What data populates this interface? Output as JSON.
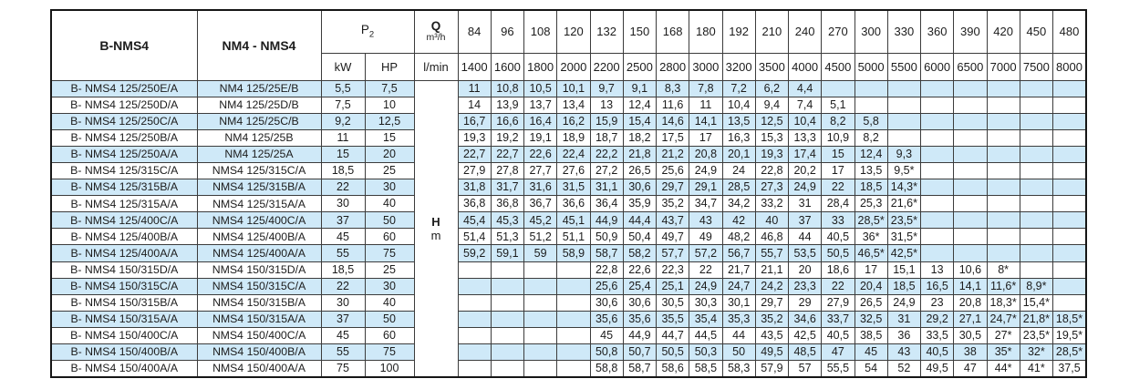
{
  "colors": {
    "stripe": "#cfe9f8",
    "border": "#3c3c3c",
    "outer": "#161616",
    "text": "#1c1c1c"
  },
  "table": {
    "col1_header": "B-NMS4",
    "col2_header": "NM4 - NMS4",
    "p2_main": "P",
    "p2_sub": "2",
    "kw_label": "kW",
    "hp_label": "HP",
    "q_label": "Q",
    "q_unit": "m³/h",
    "lmin_label": "l/min",
    "h_label": "H",
    "h_unit": "m",
    "flow_m3h": [
      "84",
      "96",
      "108",
      "120",
      "132",
      "150",
      "168",
      "180",
      "192",
      "210",
      "240",
      "270",
      "300",
      "330",
      "360",
      "390",
      "420",
      "450",
      "480"
    ],
    "flow_lmin": [
      "1400",
      "1600",
      "1800",
      "2000",
      "2200",
      "2500",
      "2800",
      "3000",
      "3200",
      "3500",
      "4000",
      "4500",
      "5000",
      "5500",
      "6000",
      "6500",
      "7000",
      "7500",
      "8000"
    ],
    "rows": [
      {
        "b": "B- NMS4 125/250E/A",
        "n": "NM4 125/25E/B",
        "kw": "5,5",
        "hp": "7,5",
        "v": [
          "11",
          "10,8",
          "10,5",
          "10,1",
          "9,7",
          "9,1",
          "8,3",
          "7,8",
          "7,2",
          "6,2",
          "4,4",
          "",
          "",
          "",
          "",
          "",
          "",
          "",
          ""
        ]
      },
      {
        "b": "B- NMS4 125/250D/A",
        "n": "NM4 125/25D/B",
        "kw": "7,5",
        "hp": "10",
        "v": [
          "14",
          "13,9",
          "13,7",
          "13,4",
          "13",
          "12,4",
          "11,6",
          "11",
          "10,4",
          "9,4",
          "7,4",
          "5,1",
          "",
          "",
          "",
          "",
          "",
          "",
          ""
        ]
      },
      {
        "b": "B- NMS4 125/250C/A",
        "n": "NM4 125/25C/B",
        "kw": "9,2",
        "hp": "12,5",
        "v": [
          "16,7",
          "16,6",
          "16,4",
          "16,2",
          "15,9",
          "15,4",
          "14,6",
          "14,1",
          "13,5",
          "12,5",
          "10,4",
          "8,2",
          "5,8",
          "",
          "",
          "",
          "",
          "",
          ""
        ]
      },
      {
        "b": "B- NMS4 125/250B/A",
        "n": "NM4 125/25B",
        "kw": "11",
        "hp": "15",
        "v": [
          "19,3",
          "19,2",
          "19,1",
          "18,9",
          "18,7",
          "18,2",
          "17,5",
          "17",
          "16,3",
          "15,3",
          "13,3",
          "10,9",
          "8,2",
          "",
          "",
          "",
          "",
          "",
          ""
        ]
      },
      {
        "b": "B- NMS4 125/250A/A",
        "n": "NM4 125/25A",
        "kw": "15",
        "hp": "20",
        "v": [
          "22,7",
          "22,7",
          "22,6",
          "22,4",
          "22,2",
          "21,8",
          "21,2",
          "20,8",
          "20,1",
          "19,3",
          "17,4",
          "15",
          "12,4",
          "9,3",
          "",
          "",
          "",
          "",
          ""
        ]
      },
      {
        "b": "B- NMS4 125/315C/A",
        "n": "NMS4 125/315C/A",
        "kw": "18,5",
        "hp": "25",
        "v": [
          "27,9",
          "27,8",
          "27,7",
          "27,6",
          "27,2",
          "26,5",
          "25,6",
          "24,9",
          "24",
          "22,8",
          "20,2",
          "17",
          "13,5",
          "9,5*",
          "",
          "",
          "",
          "",
          ""
        ]
      },
      {
        "b": "B- NMS4 125/315B/A",
        "n": "NMS4 125/315B/A",
        "kw": "22",
        "hp": "30",
        "v": [
          "31,8",
          "31,7",
          "31,6",
          "31,5",
          "31,1",
          "30,6",
          "29,7",
          "29,1",
          "28,5",
          "27,3",
          "24,9",
          "22",
          "18,5",
          "14,3*",
          "",
          "",
          "",
          "",
          ""
        ]
      },
      {
        "b": "B- NMS4 125/315A/A",
        "n": "NMS4 125/315A/A",
        "kw": "30",
        "hp": "40",
        "v": [
          "36,8",
          "36,8",
          "36,7",
          "36,6",
          "36,4",
          "35,9",
          "35,2",
          "34,7",
          "34,2",
          "33,2",
          "31",
          "28,4",
          "25,3",
          "21,6*",
          "",
          "",
          "",
          "",
          ""
        ]
      },
      {
        "b": "B- NMS4 125/400C/A",
        "n": "NMS4 125/400C/A",
        "kw": "37",
        "hp": "50",
        "v": [
          "45,4",
          "45,3",
          "45,2",
          "45,1",
          "44,9",
          "44,4",
          "43,7",
          "43",
          "42",
          "40",
          "37",
          "33",
          "28,5*",
          "23,5*",
          "",
          "",
          "",
          "",
          ""
        ]
      },
      {
        "b": "B- NMS4 125/400B/A",
        "n": "NMS4 125/400B/A",
        "kw": "45",
        "hp": "60",
        "v": [
          "51,4",
          "51,3",
          "51,2",
          "51,1",
          "50,9",
          "50,4",
          "49,7",
          "49",
          "48,2",
          "46,8",
          "44",
          "40,5",
          "36*",
          "31,5*",
          "",
          "",
          "",
          "",
          ""
        ]
      },
      {
        "b": "B- NMS4 125/400A/A",
        "n": "NMS4 125/400A/A",
        "kw": "55",
        "hp": "75",
        "v": [
          "59,2",
          "59,1",
          "59",
          "58,9",
          "58,7",
          "58,2",
          "57,7",
          "57,2",
          "56,7",
          "55,7",
          "53,5",
          "50,5",
          "46,5*",
          "42,5*",
          "",
          "",
          "",
          "",
          ""
        ]
      },
      {
        "b": "B- NMS4 150/315D/A",
        "n": "NMS4 150/315D/A",
        "kw": "18,5",
        "hp": "25",
        "v": [
          "",
          "",
          "",
          "",
          "22,8",
          "22,6",
          "22,3",
          "22",
          "21,7",
          "21,1",
          "20",
          "18,6",
          "17",
          "15,1",
          "13",
          "10,6",
          "8*",
          "",
          ""
        ]
      },
      {
        "b": "B- NMS4 150/315C/A",
        "n": "NMS4 150/315C/A",
        "kw": "22",
        "hp": "30",
        "v": [
          "",
          "",
          "",
          "",
          "25,6",
          "25,4",
          "25,1",
          "24,9",
          "24,7",
          "24,2",
          "23,3",
          "22",
          "20,4",
          "18,5",
          "16,5",
          "14,1",
          "11,6*",
          "8,9*",
          ""
        ]
      },
      {
        "b": "B- NMS4 150/315B/A",
        "n": "NMS4 150/315B/A",
        "kw": "30",
        "hp": "40",
        "v": [
          "",
          "",
          "",
          "",
          "30,6",
          "30,6",
          "30,5",
          "30,3",
          "30,1",
          "29,7",
          "29",
          "27,9",
          "26,5",
          "24,9",
          "23",
          "20,8",
          "18,3*",
          "15,4*",
          ""
        ]
      },
      {
        "b": "B- NMS4 150/315A/A",
        "n": "NMS4 150/315A/A",
        "kw": "37",
        "hp": "50",
        "v": [
          "",
          "",
          "",
          "",
          "35,6",
          "35,6",
          "35,5",
          "35,4",
          "35,3",
          "35,2",
          "34,6",
          "33,7",
          "32,5",
          "31",
          "29,2",
          "27,1",
          "24,7*",
          "21,8*",
          "18,5*"
        ]
      },
      {
        "b": "B- NMS4 150/400C/A",
        "n": "NMS4 150/400C/A",
        "kw": "45",
        "hp": "60",
        "v": [
          "",
          "",
          "",
          "",
          "45",
          "44,9",
          "44,7",
          "44,5",
          "44",
          "43,5",
          "42,5",
          "40,5",
          "38,5",
          "36",
          "33,5",
          "30,5",
          "27*",
          "23,5*",
          "19,5*"
        ]
      },
      {
        "b": "B- NMS4 150/400B/A",
        "n": "NMS4 150/400B/A",
        "kw": "55",
        "hp": "75",
        "v": [
          "",
          "",
          "",
          "",
          "50,8",
          "50,7",
          "50,5",
          "50,3",
          "50",
          "49,5",
          "48,5",
          "47",
          "45",
          "43",
          "40,5",
          "38",
          "35*",
          "32*",
          "28,5*"
        ]
      },
      {
        "b": "B- NMS4 150/400A/A",
        "n": "NMS4 150/400A/A",
        "kw": "75",
        "hp": "100",
        "v": [
          "",
          "",
          "",
          "",
          "58,8",
          "58,7",
          "58,6",
          "58,5",
          "58,3",
          "57,9",
          "57",
          "55,5",
          "54",
          "52",
          "49,5",
          "47",
          "44*",
          "41*",
          "37,5"
        ]
      }
    ]
  }
}
